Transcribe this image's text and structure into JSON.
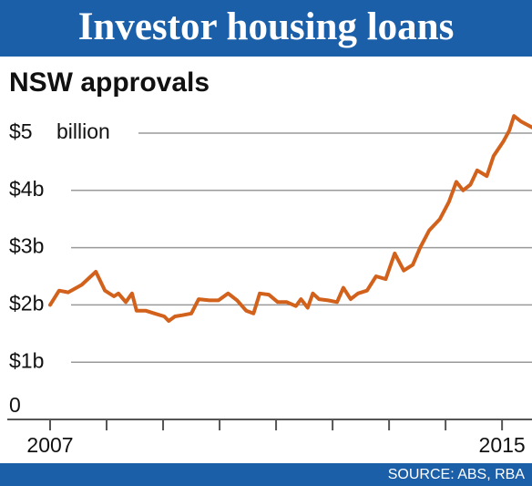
{
  "chart_data": {
    "type": "line",
    "title": "Investor housing loans",
    "subtitle": "NSW approvals",
    "y_unit": "billion",
    "source": "SOURCE: ABS, RBA",
    "xlim": [
      2007,
      2015.53
    ],
    "xticks": [
      2007,
      2008,
      2009,
      2010,
      2011,
      2012,
      2013,
      2014,
      2015
    ],
    "xlabels": [
      2007,
      2015
    ],
    "ylim": [
      0,
      5.5
    ],
    "yticks": [
      0,
      {
        "value": 1,
        "label": "$1b"
      },
      {
        "value": 2,
        "label": "$2b"
      },
      {
        "value": 3,
        "label": "$3b"
      },
      {
        "value": 4,
        "label": "$4b"
      },
      {
        "value": 5,
        "label": "$5"
      }
    ],
    "grid": true,
    "x": [
      2007,
      2007.16,
      2007.32,
      2007.56,
      2007.81,
      2007.97,
      2008.13,
      2008.21,
      2008.34,
      2008.45,
      2008.53,
      2008.69,
      2008.85,
      2009.02,
      2009.1,
      2009.21,
      2009.34,
      2009.5,
      2009.63,
      2009.82,
      2009.98,
      2010.15,
      2010.31,
      2010.47,
      2010.6,
      2010.71,
      2010.87,
      2011.03,
      2011.19,
      2011.35,
      2011.44,
      2011.56,
      2011.65,
      2011.76,
      2011.92,
      2012.08,
      2012.19,
      2012.32,
      2012.45,
      2012.61,
      2012.77,
      2012.94,
      2013.1,
      2013.26,
      2013.42,
      2013.55,
      2013.71,
      2013.9,
      2014.06,
      2014.19,
      2014.31,
      2014.44,
      2014.56,
      2014.73,
      2014.85,
      2015.02,
      2015.13,
      2015.21,
      2015.34,
      2015.53
    ],
    "series": [
      {
        "name": "NSW approvals",
        "color": "#d2611c",
        "values": [
          2.0,
          2.25,
          2.22,
          2.35,
          2.58,
          2.25,
          2.15,
          2.2,
          2.05,
          2.2,
          1.9,
          1.9,
          1.85,
          1.8,
          1.72,
          1.8,
          1.82,
          1.85,
          2.1,
          2.08,
          2.08,
          2.2,
          2.08,
          1.9,
          1.85,
          2.2,
          2.18,
          2.05,
          2.05,
          1.98,
          2.1,
          1.95,
          2.2,
          2.1,
          2.08,
          2.05,
          2.3,
          2.1,
          2.2,
          2.25,
          2.5,
          2.45,
          2.9,
          2.6,
          2.7,
          3.0,
          3.3,
          3.5,
          3.8,
          4.15,
          4.0,
          4.1,
          4.35,
          4.25,
          4.6,
          4.85,
          5.05,
          5.3,
          5.2,
          5.1
        ]
      }
    ]
  }
}
